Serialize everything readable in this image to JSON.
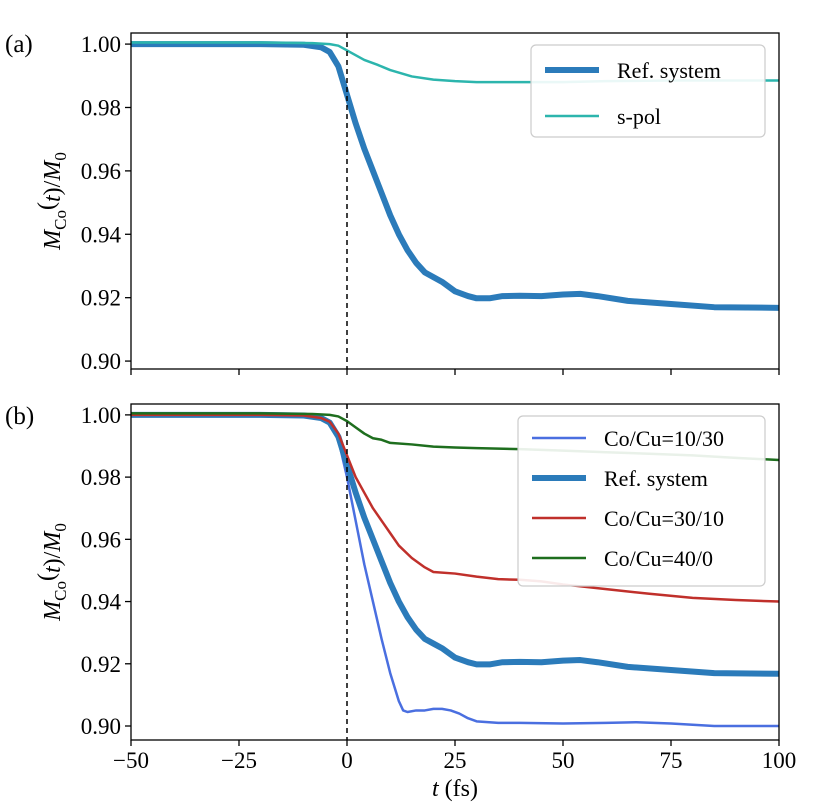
{
  "chart_data": [
    {
      "type": "line",
      "panel_label": "(a)",
      "xlabel": "",
      "ylabel": "M_Co(t)/M_0",
      "ylabel_parts": {
        "main": "M",
        "sub": "Co",
        "paren": "(",
        "t": "t",
        "close": ")/",
        "m0": "M",
        "sub0": "0"
      },
      "xlim": [
        -50,
        100
      ],
      "ylim": [
        0.8975,
        1.0035
      ],
      "xticks": [
        -50,
        -25,
        0,
        25,
        50,
        75,
        100
      ],
      "yticks": [
        0.9,
        0.92,
        0.94,
        0.96,
        0.98,
        1.0
      ],
      "ytick_labels": [
        "0.90",
        "0.92",
        "0.94",
        "0.96",
        "0.98",
        "1.00"
      ],
      "show_xtick_labels": false,
      "vline_x": 0,
      "legend_position": "upper-right",
      "series": [
        {
          "name": "Ref. system",
          "color": "#2b7bba",
          "linewidth": 6,
          "x": [
            -50,
            -20,
            -10,
            -6,
            -4,
            -2,
            0,
            2,
            4,
            6,
            8,
            10,
            12,
            14,
            16,
            18,
            20,
            22,
            25,
            28,
            30,
            33,
            36,
            40,
            45,
            50,
            54,
            58,
            65,
            75,
            85,
            100
          ],
          "y": [
            1.0,
            1.0,
            0.9998,
            0.999,
            0.9975,
            0.993,
            0.984,
            0.975,
            0.967,
            0.96,
            0.953,
            0.946,
            0.94,
            0.935,
            0.931,
            0.928,
            0.9265,
            0.925,
            0.922,
            0.9205,
            0.9198,
            0.9198,
            0.9205,
            0.9206,
            0.9205,
            0.921,
            0.9212,
            0.9205,
            0.919,
            0.918,
            0.917,
            0.9168
          ]
        },
        {
          "name": "s-pol",
          "color": "#2cb5ad",
          "linewidth": 2.5,
          "x": [
            -50,
            -20,
            -8,
            -4,
            -2,
            0,
            2,
            4,
            7,
            10,
            15,
            20,
            25,
            30,
            40,
            50,
            60,
            75,
            100
          ],
          "y": [
            1.0005,
            1.0005,
            1.0003,
            1.0,
            0.9995,
            0.998,
            0.9965,
            0.995,
            0.9935,
            0.9918,
            0.9898,
            0.9888,
            0.9883,
            0.988,
            0.988,
            0.988,
            0.9883,
            0.9885,
            0.9885
          ]
        }
      ]
    },
    {
      "type": "line",
      "panel_label": "(b)",
      "xlabel": "t (fs)",
      "xlabel_parts": {
        "var": "t",
        "unit": " (fs)"
      },
      "ylabel": "M_Co(t)/M_0",
      "ylabel_parts": {
        "main": "M",
        "sub": "Co",
        "paren": "(",
        "t": "t",
        "close": ")/",
        "m0": "M",
        "sub0": "0"
      },
      "xlim": [
        -50,
        100
      ],
      "ylim": [
        0.8955,
        1.0035
      ],
      "xticks": [
        -50,
        -25,
        0,
        25,
        50,
        75,
        100
      ],
      "xtick_labels": [
        "−50",
        "−25",
        "0",
        "25",
        "50",
        "75",
        "100"
      ],
      "yticks": [
        0.9,
        0.92,
        0.94,
        0.96,
        0.98,
        1.0
      ],
      "ytick_labels": [
        "0.90",
        "0.92",
        "0.94",
        "0.96",
        "0.98",
        "1.00"
      ],
      "show_xtick_labels": true,
      "vline_x": 0,
      "legend_position": "upper-right",
      "series": [
        {
          "name": "Co/Cu=10/30",
          "color": "#4a6fe0",
          "linewidth": 2.5,
          "x": [
            -50,
            -20,
            -10,
            -6,
            -4,
            -2,
            0,
            2,
            4,
            6,
            8,
            10,
            12,
            13,
            14,
            16,
            18,
            20,
            22,
            24,
            26,
            28,
            30,
            35,
            40,
            50,
            60,
            67,
            75,
            85,
            100
          ],
          "y": [
            1.0,
            1.0,
            0.9998,
            0.999,
            0.997,
            0.992,
            0.98,
            0.966,
            0.952,
            0.94,
            0.928,
            0.917,
            0.908,
            0.905,
            0.9045,
            0.905,
            0.905,
            0.9055,
            0.9055,
            0.905,
            0.904,
            0.9025,
            0.9015,
            0.901,
            0.901,
            0.9008,
            0.901,
            0.9012,
            0.9008,
            0.9,
            0.9
          ]
        },
        {
          "name": "Ref. system",
          "color": "#2b7bba",
          "linewidth": 6,
          "x": [
            -50,
            -20,
            -10,
            -6,
            -4,
            -2,
            0,
            2,
            4,
            6,
            8,
            10,
            12,
            14,
            16,
            18,
            20,
            22,
            25,
            28,
            30,
            33,
            36,
            40,
            45,
            50,
            54,
            58,
            65,
            75,
            85,
            100
          ],
          "y": [
            1.0,
            1.0,
            0.9998,
            0.999,
            0.9975,
            0.993,
            0.984,
            0.975,
            0.967,
            0.96,
            0.953,
            0.946,
            0.94,
            0.935,
            0.931,
            0.928,
            0.9265,
            0.925,
            0.922,
            0.9205,
            0.9198,
            0.9198,
            0.9205,
            0.9206,
            0.9205,
            0.921,
            0.9212,
            0.9205,
            0.919,
            0.918,
            0.917,
            0.9168
          ]
        },
        {
          "name": "Co/Cu=30/10",
          "color": "#c0302b",
          "linewidth": 2.5,
          "x": [
            -50,
            -20,
            -10,
            -6,
            -4,
            -2,
            0,
            2,
            4,
            6,
            8,
            10,
            12,
            15,
            18,
            20,
            25,
            30,
            35,
            40,
            45,
            50,
            60,
            70,
            80,
            90,
            100
          ],
          "y": [
            1.0,
            1.0,
            0.9998,
            0.999,
            0.9978,
            0.994,
            0.987,
            0.98,
            0.975,
            0.97,
            0.966,
            0.962,
            0.958,
            0.954,
            0.951,
            0.9495,
            0.949,
            0.948,
            0.9472,
            0.947,
            0.9465,
            0.9455,
            0.944,
            0.9425,
            0.9412,
            0.9405,
            0.94
          ]
        },
        {
          "name": "Co/Cu=40/0",
          "color": "#1e6e1e",
          "linewidth": 2.5,
          "x": [
            -50,
            -20,
            -8,
            -4,
            -2,
            0,
            2,
            4,
            6,
            8,
            10,
            15,
            20,
            25,
            30,
            40,
            50,
            60,
            70,
            80,
            90,
            100
          ],
          "y": [
            1.0005,
            1.0005,
            1.0003,
            1.0,
            0.9995,
            0.998,
            0.996,
            0.994,
            0.9925,
            0.992,
            0.991,
            0.9905,
            0.9898,
            0.9895,
            0.9893,
            0.989,
            0.9885,
            0.988,
            0.9875,
            0.987,
            0.9862,
            0.9855
          ]
        }
      ]
    }
  ]
}
